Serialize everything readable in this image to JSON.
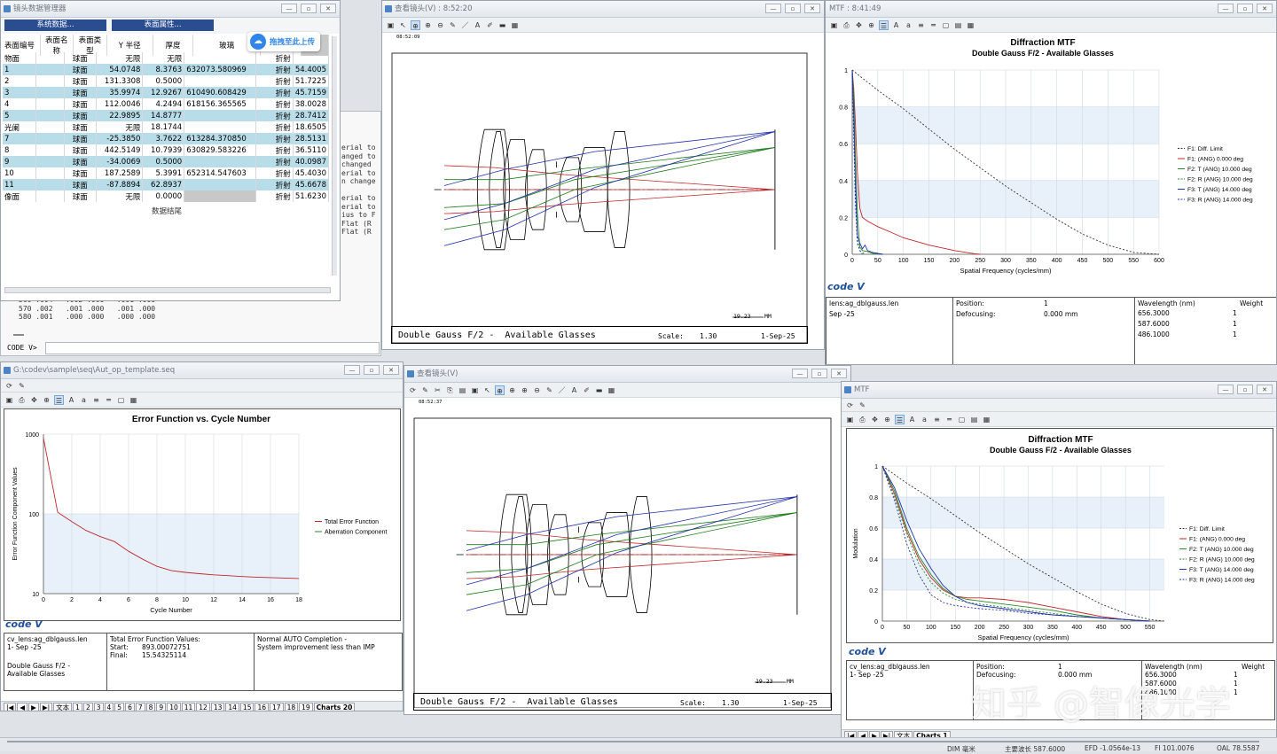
{
  "lens_manager": {
    "title": "镜头数据管理器",
    "tab_system": "系统数据...",
    "tab_surface": "表面属性...",
    "upload_label": "拖拽至此上传",
    "headers": [
      "表面编号",
      "表面名称",
      "表面类型",
      "Y 半径",
      "厚度",
      "玻璃",
      "折射"
    ],
    "rows": [
      {
        "no": "物面",
        "type": "球面",
        "radius": "无限",
        "thick": "无限",
        "glass": "",
        "ref": "折射",
        "sa": ""
      },
      {
        "no": "1",
        "type": "球面",
        "radius": "54.0748",
        "thick": "8.3763",
        "glass": "632073.580969",
        "ref": "折射",
        "sa": "54.4005"
      },
      {
        "no": "2",
        "type": "球面",
        "radius": "131.3308",
        "thick": "0.5000",
        "glass": "",
        "ref": "折射",
        "sa": "51.7225"
      },
      {
        "no": "3",
        "type": "球面",
        "radius": "35.9974",
        "thick": "12.9267",
        "glass": "610490.608429",
        "ref": "折射",
        "sa": "45.7159"
      },
      {
        "no": "4",
        "type": "球面",
        "radius": "112.0046",
        "thick": "4.2494",
        "glass": "618156.365565",
        "ref": "折射",
        "sa": "38.0028"
      },
      {
        "no": "5",
        "type": "球面",
        "radius": "22.9895",
        "thick": "14.8777",
        "glass": "",
        "ref": "折射",
        "sa": "28.7412"
      },
      {
        "no": "光阑",
        "type": "球面",
        "radius": "无限",
        "thick": "18.1744",
        "glass": "",
        "ref": "折射",
        "sa": "18.6505"
      },
      {
        "no": "7",
        "type": "球面",
        "radius": "-25.3850",
        "thick": "3.7622",
        "glass": "613284.370850",
        "ref": "折射",
        "sa": "28.5131"
      },
      {
        "no": "8",
        "type": "球面",
        "radius": "442.5149",
        "thick": "10.7939",
        "glass": "630829.583226",
        "ref": "折射",
        "sa": "36.5110"
      },
      {
        "no": "9",
        "type": "球面",
        "radius": "-34.0069",
        "thick": "0.5000",
        "glass": "",
        "ref": "折射",
        "sa": "40.0987"
      },
      {
        "no": "10",
        "type": "球面",
        "radius": "187.2589",
        "thick": "5.3991",
        "glass": "652314.547603",
        "ref": "折射",
        "sa": "45.4030"
      },
      {
        "no": "11",
        "type": "球面",
        "radius": "-87.8894",
        "thick": "62.8937",
        "glass": "",
        "ref": "折射",
        "sa": "45.6678"
      },
      {
        "no": "像面",
        "type": "球面",
        "radius": "无限",
        "thick": "0.0000",
        "glass": "",
        "ref": "折射",
        "sa": "51.6230"
      }
    ],
    "end_label": "数据结尾"
  },
  "cmd_window": {
    "side_text": [
      "erial to",
      "anged to",
      "changed",
      "erial to",
      "n change",
      "",
      "erial to",
      "erial to",
      "ius to F",
      "Flat (R",
      "Flat (R"
    ],
    "bottom_lines": [
      "560 .004   .002 .000   .001 .000",
      "570 .002   .001 .000   .001 .000",
      "580 .001   .000 .000   .000 .000"
    ],
    "prompt": "CODE V>"
  },
  "view_lens_1": {
    "title": "查看镜头(V) : 8:52:20",
    "time": "08:52:09",
    "caption": "Double Gauss F/2 -  Available Glasses",
    "scale_label": "Scale:",
    "scale": "1.30",
    "date": "1-Sep-25",
    "scalebar": "19.23",
    "unit": "MM"
  },
  "view_lens_2": {
    "title": "查看镜头(V)",
    "time": "08:52:37",
    "caption": "Double Gauss F/2 -  Available Glasses",
    "scale_label": "Scale:",
    "scale": "1.30",
    "date": "1-Sep-25",
    "scalebar": "19.23",
    "unit": "MM"
  },
  "mtf_1": {
    "title": "MTF : 8:41:49",
    "logo": "code V",
    "info": {
      "lens": "lens:ag_dblgauss.len",
      "date": "Sep -25",
      "position_label": "Position:",
      "position": "1",
      "defocus_label": "Defocusing:",
      "defocus": "0.000 mm",
      "wl_header": "Wavelength (nm)",
      "weight_header": "Weight",
      "wavelengths": [
        "656.3000",
        "587.6000",
        "486.1000"
      ],
      "weights": [
        "1",
        "1",
        "1"
      ]
    }
  },
  "mtf_2": {
    "title": "MTF",
    "logo": "code V",
    "info": {
      "lens": "cv_lens:ag_dblgauss.len",
      "date": "1- Sep -25",
      "position_label": "Position:",
      "position": "1",
      "defocus_label": "Defocusing:",
      "defocus": "0.000 mm",
      "wl_header": "Wavelength (nm)",
      "weight_header": "Weight",
      "wavelengths": [
        "656.3000",
        "587.6000",
        "486.1000"
      ],
      "weights": [
        "1",
        "1",
        "1"
      ]
    },
    "tabs": [
      "文本",
      "Charts 1"
    ]
  },
  "error_fn": {
    "title": "G:\\codev\\sample\\seq\\Aut_op_template.seq",
    "logo": "code V",
    "info": {
      "lens": "cv_lens:ag_dblgauss.len",
      "date": "1- Sep -25",
      "desc1": "Double Gauss F/2 -",
      "desc2": "Available Glasses",
      "tef_label": "Total Error Function Values:",
      "start_label": "Start:",
      "start": "893.00072751",
      "final_label": "Final:",
      "final": "15.54325114",
      "completion": "Normal AUTO Completion -",
      "completion2": "System improvement less than IMP"
    },
    "tabs": [
      "文本",
      "1",
      "2",
      "3",
      "4",
      "5",
      "6",
      "7",
      "8",
      "9",
      "10",
      "11",
      "12",
      "13",
      "14",
      "15",
      "16",
      "17",
      "18",
      "19",
      "Charts 20"
    ]
  },
  "status_bar": {
    "items": [
      "DIM  毫米",
      "主要波长 587.6000",
      "EFD -1.0564e-13",
      "FI 101.0076",
      "OAL 78.5587"
    ]
  },
  "watermark": "知乎 @智像光学",
  "chart_data": [
    {
      "type": "line",
      "title": "Diffraction MTF",
      "subtitle": "Double Gauss F/2 -  Available Glasses",
      "xlabel": "Spatial Frequency (cycles/mm)",
      "ylabel": "",
      "xlim": [
        0,
        600
      ],
      "ylim": [
        0,
        1
      ],
      "xticks": [
        0,
        50,
        100,
        150,
        200,
        250,
        300,
        350,
        400,
        450,
        500,
        550,
        600
      ],
      "yticks": [
        0,
        0.2,
        0.4,
        0.6,
        0.8,
        1
      ],
      "grid": true,
      "legend": "right",
      "series": [
        {
          "name": "F1: Diff. Limit",
          "color": "#333333",
          "dash": true,
          "x": [
            0,
            50,
            100,
            150,
            200,
            250,
            300,
            350,
            400,
            450,
            500,
            550,
            600
          ],
          "y": [
            1,
            0.89,
            0.79,
            0.68,
            0.57,
            0.47,
            0.37,
            0.28,
            0.19,
            0.11,
            0.05,
            0.01,
            0
          ]
        },
        {
          "name": "F1: (ANG) 0.000 deg",
          "color": "#c0262b",
          "dash": false,
          "x": [
            0,
            3,
            6,
            10,
            15,
            20,
            30,
            50,
            75,
            100,
            150,
            200,
            240,
            250
          ],
          "y": [
            1,
            0.9,
            0.72,
            0.45,
            0.25,
            0.2,
            0.18,
            0.15,
            0.12,
            0.09,
            0.05,
            0.02,
            0.003,
            0
          ]
        },
        {
          "name": "F2: T (ANG) 10.000 deg",
          "color": "#2a8a2a",
          "dash": false,
          "x": [
            0,
            3,
            6,
            10,
            15,
            20,
            30,
            40,
            50,
            60
          ],
          "y": [
            1,
            0.85,
            0.55,
            0.22,
            0.04,
            0.02,
            0.015,
            0.005,
            0.002,
            0
          ]
        },
        {
          "name": "F2: R (ANG) 10.000 deg",
          "color": "#2a8a2a",
          "dash": true,
          "x": [
            0,
            3,
            6,
            10,
            15,
            20,
            25
          ],
          "y": [
            1,
            0.7,
            0.35,
            0.08,
            0.02,
            0.01,
            0
          ]
        },
        {
          "name": "F3: T (ANG) 14.000 deg",
          "color": "#2233aa",
          "dash": false,
          "x": [
            0,
            3,
            6,
            10,
            15,
            20,
            25,
            30,
            40,
            50,
            60
          ],
          "y": [
            1,
            0.75,
            0.4,
            0.1,
            0.06,
            0.03,
            0.05,
            0.02,
            0.01,
            0.005,
            0
          ]
        },
        {
          "name": "F3: R (ANG) 14.000 deg",
          "color": "#2233aa",
          "dash": true,
          "x": [
            0,
            3,
            6,
            10,
            15,
            20
          ],
          "y": [
            1,
            0.65,
            0.3,
            0.06,
            0.02,
            0
          ]
        }
      ]
    },
    {
      "type": "line",
      "title": "Diffraction MTF",
      "subtitle": "Double Gauss F/2 -  Available Glasses",
      "xlabel": "Spatial Frequency (cycles/mm)",
      "ylabel": "Modulation",
      "xlim": [
        0,
        580
      ],
      "ylim": [
        0,
        1
      ],
      "xticks": [
        0,
        50,
        100,
        150,
        200,
        250,
        300,
        350,
        400,
        450,
        500,
        550
      ],
      "yticks": [
        0,
        0.2,
        0.4,
        0.6,
        0.8,
        1
      ],
      "grid": true,
      "legend": "right",
      "series": [
        {
          "name": "F1: Diff. Limit",
          "color": "#333333",
          "dash": true,
          "x": [
            0,
            50,
            100,
            150,
            200,
            250,
            300,
            350,
            400,
            450,
            500,
            550,
            580
          ],
          "y": [
            1,
            0.89,
            0.79,
            0.68,
            0.57,
            0.47,
            0.37,
            0.28,
            0.19,
            0.11,
            0.05,
            0.01,
            0
          ]
        },
        {
          "name": "F1: (ANG) 0.000 deg",
          "color": "#c0262b",
          "dash": false,
          "x": [
            0,
            25,
            50,
            75,
            100,
            125,
            150,
            175,
            200,
            250,
            300,
            350,
            400,
            450,
            500,
            550
          ],
          "y": [
            1,
            0.82,
            0.58,
            0.4,
            0.28,
            0.2,
            0.16,
            0.15,
            0.15,
            0.14,
            0.12,
            0.09,
            0.06,
            0.03,
            0.01,
            0
          ]
        },
        {
          "name": "F2: T (ANG) 10.000 deg",
          "color": "#2a8a2a",
          "dash": false,
          "x": [
            0,
            25,
            50,
            75,
            100,
            125,
            150,
            175,
            200,
            250,
            300,
            350,
            400,
            450,
            500,
            550
          ],
          "y": [
            1,
            0.84,
            0.6,
            0.42,
            0.3,
            0.21,
            0.16,
            0.14,
            0.13,
            0.11,
            0.09,
            0.07,
            0.04,
            0.02,
            0.01,
            0
          ]
        },
        {
          "name": "F2: R (ANG) 10.000 deg",
          "color": "#2a8a2a",
          "dash": true,
          "x": [
            0,
            25,
            50,
            75,
            100,
            125,
            150,
            175,
            200,
            250,
            300,
            350,
            400,
            450,
            500,
            550
          ],
          "y": [
            1,
            0.8,
            0.56,
            0.37,
            0.25,
            0.18,
            0.14,
            0.12,
            0.11,
            0.09,
            0.07,
            0.05,
            0.03,
            0.02,
            0.01,
            0
          ]
        },
        {
          "name": "F3: T (ANG) 14.000 deg",
          "color": "#2233aa",
          "dash": false,
          "x": [
            0,
            25,
            50,
            75,
            100,
            125,
            150,
            175,
            200,
            250,
            300,
            350,
            400,
            450,
            500,
            550
          ],
          "y": [
            1,
            0.86,
            0.65,
            0.47,
            0.34,
            0.23,
            0.16,
            0.12,
            0.1,
            0.08,
            0.06,
            0.04,
            0.03,
            0.02,
            0.01,
            0
          ]
        },
        {
          "name": "F3: R (ANG) 14.000 deg",
          "color": "#2233aa",
          "dash": true,
          "x": [
            0,
            25,
            50,
            75,
            100,
            125,
            150,
            175,
            200,
            250,
            300,
            350,
            400,
            450,
            500,
            550
          ],
          "y": [
            1,
            0.78,
            0.5,
            0.3,
            0.17,
            0.12,
            0.1,
            0.09,
            0.08,
            0.07,
            0.05,
            0.04,
            0.03,
            0.02,
            0.01,
            0
          ]
        }
      ]
    },
    {
      "type": "line",
      "title": "Error Function vs. Cycle Number",
      "subtitle": "",
      "xlabel": "Cycle Number",
      "ylabel": "Error Function Component Values",
      "xlim": [
        0,
        18
      ],
      "ylim": [
        10,
        1000
      ],
      "yscale": "log",
      "xticks": [
        0,
        2,
        4,
        6,
        8,
        10,
        12,
        14,
        16,
        18
      ],
      "yticks": [
        10,
        100,
        1000
      ],
      "grid": true,
      "legend": "right",
      "series": [
        {
          "name": "Total Error Function",
          "color": "#c0262b",
          "dash": false,
          "x": [
            0,
            1,
            2,
            3,
            4,
            5,
            6,
            7,
            8,
            9,
            10,
            11,
            12,
            13,
            14,
            15,
            16,
            17,
            18
          ],
          "y": [
            893,
            105,
            80,
            62,
            52,
            45,
            34,
            27,
            22,
            19.5,
            18.5,
            17.8,
            17.2,
            16.8,
            16.4,
            16.1,
            15.9,
            15.7,
            15.5
          ]
        },
        {
          "name": "Aberration Component",
          "color": "#2a8a2a",
          "dash": false,
          "x": [],
          "y": []
        }
      ]
    }
  ]
}
